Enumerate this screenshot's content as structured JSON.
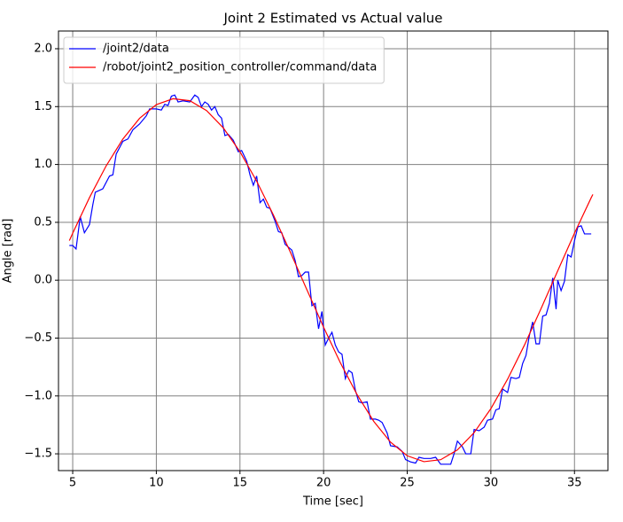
{
  "chart_data": {
    "type": "line",
    "title": "Joint 2 Estimated vs Actual value",
    "x_label": "Time [sec]",
    "y_label": "Angle [rad]",
    "xlim": [
      4.15,
      37.0
    ],
    "ylim": [
      -1.645,
      2.153
    ],
    "xticks": [
      5,
      10,
      15,
      20,
      25,
      30,
      35
    ],
    "yticks": [
      {
        "value": -1.5,
        "label": "−1.5"
      },
      {
        "value": -1.0,
        "label": "−1.0"
      },
      {
        "value": -0.5,
        "label": "−0.5"
      },
      {
        "value": 0.0,
        "label": "0.0"
      },
      {
        "value": 0.5,
        "label": "0.5"
      },
      {
        "value": 1.0,
        "label": "1.0"
      },
      {
        "value": 1.5,
        "label": "1.5"
      },
      {
        "value": 2.0,
        "label": "2.0"
      }
    ],
    "grid": true,
    "grid_color": "#808080",
    "legend": "upper-left",
    "series": [
      {
        "name": "/joint2/data",
        "color": "#0000ff",
        "x": [
          4.8,
          5.0,
          5.2,
          5.45,
          5.7,
          6.0,
          6.2,
          6.35,
          6.8,
          7.2,
          7.4,
          7.6,
          8.0,
          8.3,
          8.6,
          9.0,
          9.4,
          9.6,
          10.0,
          10.3,
          10.5,
          10.7,
          10.9,
          11.1,
          11.3,
          11.6,
          12.0,
          12.3,
          12.5,
          12.7,
          12.9,
          13.1,
          13.3,
          13.5,
          13.7,
          13.9,
          14.1,
          14.3,
          14.6,
          14.9,
          15.1,
          15.4,
          15.6,
          15.8,
          16.0,
          16.2,
          16.4,
          16.6,
          16.8,
          17.1,
          17.3,
          17.5,
          17.7,
          18.1,
          18.3,
          18.5,
          18.7,
          18.9,
          19.1,
          19.3,
          19.5,
          19.7,
          19.9,
          20.1,
          20.3,
          20.5,
          20.7,
          20.9,
          21.1,
          21.3,
          21.5,
          21.7,
          21.9,
          22.1,
          22.3,
          22.6,
          22.8,
          23.1,
          23.3,
          23.5,
          23.8,
          24.0,
          24.4,
          24.7,
          24.9,
          25.2,
          25.5,
          25.7,
          26.0,
          26.4,
          26.7,
          27.0,
          27.3,
          27.6,
          27.8,
          28.0,
          28.3,
          28.5,
          28.8,
          29.0,
          29.3,
          29.6,
          29.8,
          30.1,
          30.3,
          30.5,
          30.7,
          31.0,
          31.2,
          31.5,
          31.7,
          31.9,
          32.1,
          32.3,
          32.5,
          32.7,
          32.9,
          33.1,
          33.3,
          33.5,
          33.7,
          33.9,
          34.0,
          34.2,
          34.4,
          34.6,
          34.8,
          35.0,
          35.2,
          35.4,
          35.6,
          36.0
        ],
        "values": [
          0.3,
          0.3,
          0.27,
          0.55,
          0.41,
          0.48,
          0.65,
          0.76,
          0.79,
          0.9,
          0.91,
          1.09,
          1.2,
          1.22,
          1.3,
          1.35,
          1.42,
          1.48,
          1.48,
          1.47,
          1.52,
          1.51,
          1.59,
          1.6,
          1.54,
          1.55,
          1.54,
          1.6,
          1.58,
          1.5,
          1.54,
          1.52,
          1.47,
          1.5,
          1.43,
          1.4,
          1.25,
          1.26,
          1.21,
          1.11,
          1.12,
          1.03,
          0.91,
          0.82,
          0.9,
          0.67,
          0.7,
          0.63,
          0.62,
          0.51,
          0.42,
          0.41,
          0.31,
          0.26,
          0.17,
          0.03,
          0.04,
          0.07,
          0.07,
          -0.22,
          -0.2,
          -0.42,
          -0.27,
          -0.56,
          -0.5,
          -0.45,
          -0.56,
          -0.62,
          -0.64,
          -0.85,
          -0.78,
          -0.8,
          -0.95,
          -1.05,
          -1.06,
          -1.05,
          -1.2,
          -1.2,
          -1.21,
          -1.23,
          -1.32,
          -1.43,
          -1.44,
          -1.48,
          -1.55,
          -1.57,
          -1.58,
          -1.53,
          -1.54,
          -1.54,
          -1.53,
          -1.59,
          -1.59,
          -1.59,
          -1.5,
          -1.39,
          -1.44,
          -1.5,
          -1.5,
          -1.29,
          -1.3,
          -1.27,
          -1.21,
          -1.2,
          -1.12,
          -1.11,
          -0.94,
          -0.97,
          -0.84,
          -0.85,
          -0.84,
          -0.72,
          -0.65,
          -0.48,
          -0.36,
          -0.55,
          -0.55,
          -0.31,
          -0.3,
          -0.2,
          0.02,
          -0.25,
          0.0,
          -0.09,
          -0.01,
          0.22,
          0.2,
          0.34,
          0.46,
          0.47,
          0.4,
          0.4
        ]
      },
      {
        "name": "/robot/joint2_position_controller/command/data",
        "color": "#ff0000",
        "x": [
          4.8,
          5,
          6,
          7,
          8,
          9,
          10,
          11,
          12,
          13,
          14,
          15,
          16,
          17,
          18,
          19,
          20,
          21,
          22,
          23,
          24,
          25,
          26,
          27,
          28,
          29,
          30,
          31,
          32,
          33,
          34,
          35,
          36,
          36.1
        ],
        "values": [
          0.342,
          0.406,
          0.713,
          0.988,
          1.22,
          1.399,
          1.517,
          1.568,
          1.551,
          1.466,
          1.317,
          1.11,
          0.855,
          0.563,
          0.246,
          -0.082,
          -0.406,
          -0.713,
          -0.988,
          -1.22,
          -1.399,
          -1.517,
          -1.568,
          -1.551,
          -1.466,
          -1.317,
          -1.11,
          -0.855,
          -0.563,
          -0.246,
          0.082,
          0.406,
          0.713,
          0.741
        ]
      }
    ]
  }
}
